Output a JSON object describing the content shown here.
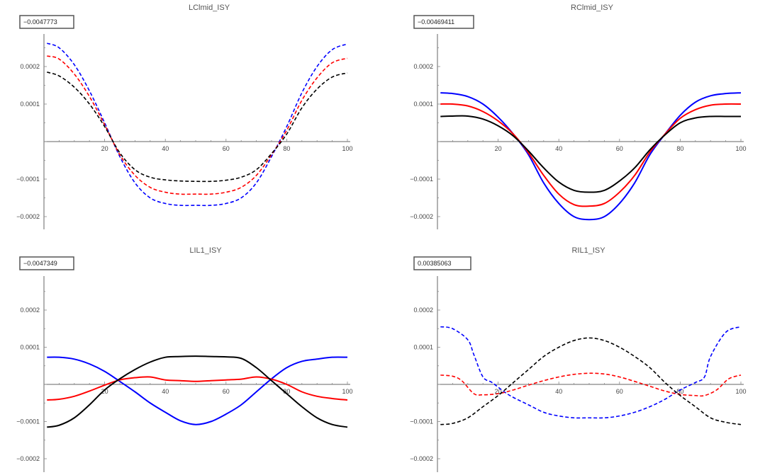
{
  "chart_data": [
    {
      "type": "line",
      "title": "LClmid_ISY",
      "offset_label": "−0.0047773",
      "xlim": [
        0,
        100
      ],
      "ylim": [
        -0.00023,
        0.00029
      ],
      "x_ticks": [
        20,
        40,
        60,
        80,
        100
      ],
      "y_ticks": [
        -0.0002,
        -0.0001,
        0.0001,
        0.0002
      ],
      "y_tick_labels": [
        "−0.0002",
        "−0.0001",
        "0.0001",
        "0.0002"
      ],
      "series": [
        {
          "color": "#0000ff",
          "dashed": true,
          "x": [
            1,
            5,
            10,
            15,
            20,
            25,
            30,
            35,
            40,
            45,
            50,
            55,
            60,
            65,
            70,
            75,
            80,
            85,
            90,
            95,
            100
          ],
          "y": [
            0.000262,
            0.00025,
            0.000205,
            0.000135,
            5e-05,
            -4e-05,
            -0.00011,
            -0.00015,
            -0.000165,
            -0.00017,
            -0.00017,
            -0.00017,
            -0.000165,
            -0.00015,
            -0.00011,
            -4e-05,
            4e-05,
            0.00013,
            0.0002,
            0.000245,
            0.00026
          ]
        },
        {
          "color": "#ff0000",
          "dashed": true,
          "x": [
            1,
            5,
            10,
            15,
            20,
            25,
            30,
            35,
            40,
            45,
            50,
            55,
            60,
            65,
            70,
            75,
            80,
            85,
            90,
            95,
            100
          ],
          "y": [
            0.000228,
            0.00022,
            0.00018,
            0.00012,
            4.5e-05,
            -3.5e-05,
            -9e-05,
            -0.000122,
            -0.000135,
            -0.00014,
            -0.00014,
            -0.00014,
            -0.000135,
            -0.000122,
            -9e-05,
            -3.5e-05,
            3e-05,
            0.00011,
            0.00017,
            0.00021,
            0.000222
          ]
        },
        {
          "color": "#000000",
          "dashed": true,
          "x": [
            1,
            5,
            10,
            15,
            20,
            25,
            30,
            35,
            40,
            45,
            50,
            55,
            60,
            65,
            70,
            75,
            80,
            85,
            90,
            95,
            100
          ],
          "y": [
            0.000185,
            0.000175,
            0.000145,
            0.0001,
            4e-05,
            -3e-05,
            -7.5e-05,
            -9.5e-05,
            -0.000102,
            -0.000105,
            -0.000106,
            -0.000106,
            -0.000103,
            -9.5e-05,
            -7.5e-05,
            -3.2e-05,
            2e-05,
            9e-05,
            0.00014,
            0.000172,
            0.000183
          ]
        }
      ]
    },
    {
      "type": "line",
      "title": "RClmid_ISY",
      "offset_label": "−0.00469411",
      "xlim": [
        0,
        100
      ],
      "ylim": [
        -0.00023,
        0.00029
      ],
      "x_ticks": [
        20,
        40,
        60,
        80,
        100
      ],
      "y_ticks": [
        -0.0002,
        -0.0001,
        0.0001,
        0.0002
      ],
      "y_tick_labels": [
        "−0.0002",
        "−0.0001",
        "0.0001",
        "0.0002"
      ],
      "series": [
        {
          "color": "#0000ff",
          "dashed": false,
          "x": [
            1,
            5,
            10,
            15,
            20,
            25,
            30,
            35,
            40,
            45,
            50,
            55,
            60,
            65,
            70,
            75,
            80,
            85,
            90,
            95,
            100
          ],
          "y": [
            0.00013,
            0.000128,
            0.00012,
            0.0001,
            6.5e-05,
            2e-05,
            -3.5e-05,
            -0.00011,
            -0.000165,
            -0.0002,
            -0.000208,
            -0.0002,
            -0.000165,
            -0.00011,
            -3.5e-05,
            2e-05,
            7e-05,
            0.000105,
            0.000122,
            0.000128,
            0.00013
          ]
        },
        {
          "color": "#ff0000",
          "dashed": false,
          "x": [
            1,
            5,
            10,
            15,
            20,
            25,
            30,
            35,
            40,
            45,
            50,
            55,
            60,
            65,
            70,
            75,
            80,
            85,
            90,
            95,
            100
          ],
          "y": [
            0.0001,
            0.0001,
            9.5e-05,
            8e-05,
            5.5e-05,
            2e-05,
            -3e-05,
            -9e-05,
            -0.00014,
            -0.000168,
            -0.000172,
            -0.000165,
            -0.000135,
            -9e-05,
            -2.8e-05,
            2e-05,
            6.2e-05,
            8.5e-05,
            9.7e-05,
            0.0001,
            0.0001
          ]
        },
        {
          "color": "#000000",
          "dashed": false,
          "x": [
            1,
            5,
            10,
            15,
            20,
            25,
            30,
            35,
            40,
            45,
            50,
            55,
            60,
            65,
            70,
            75,
            80,
            85,
            90,
            95,
            100
          ],
          "y": [
            6.7e-05,
            6.8e-05,
            6.8e-05,
            6e-05,
            4.2e-05,
            1.5e-05,
            -2.5e-05,
            -7e-05,
            -0.000108,
            -0.00013,
            -0.000135,
            -0.00013,
            -0.000105,
            -7e-05,
            -2.2e-05,
            1.8e-05,
            5e-05,
            6.3e-05,
            6.7e-05,
            6.7e-05,
            6.7e-05
          ]
        }
      ]
    },
    {
      "type": "line",
      "title": "LIL1_ISY",
      "offset_label": "−0.0047349",
      "xlim": [
        0,
        100
      ],
      "ylim": [
        -0.00023,
        0.00029
      ],
      "x_ticks": [
        20,
        40,
        60,
        80,
        100
      ],
      "y_ticks": [
        -0.0002,
        -0.0001,
        0.0001,
        0.0002
      ],
      "y_tick_labels": [
        "−0.0002",
        "−0.0001",
        "0.0001",
        "0.0002"
      ],
      "series": [
        {
          "color": "#0000ff",
          "dashed": false,
          "x": [
            1,
            5,
            10,
            15,
            20,
            25,
            30,
            35,
            40,
            45,
            50,
            55,
            60,
            65,
            70,
            75,
            80,
            85,
            90,
            95,
            100
          ],
          "y": [
            7.3e-05,
            7.3e-05,
            6.8e-05,
            5.5e-05,
            3.5e-05,
            8e-06,
            -2e-05,
            -5e-05,
            -7.5e-05,
            -9.8e-05,
            -0.000108,
            -0.0001,
            -8e-05,
            -5.5e-05,
            -2e-05,
            1.5e-05,
            4.5e-05,
            6.2e-05,
            6.8e-05,
            7.3e-05,
            7.3e-05
          ]
        },
        {
          "color": "#ff0000",
          "dashed": false,
          "x": [
            1,
            5,
            10,
            15,
            20,
            25,
            30,
            35,
            40,
            45,
            50,
            55,
            60,
            65,
            70,
            75,
            80,
            85,
            90,
            95,
            100
          ],
          "y": [
            -4.2e-05,
            -4e-05,
            -3.2e-05,
            -1.8e-05,
            -2e-06,
            1.2e-05,
            1.8e-05,
            2e-05,
            1.2e-05,
            1e-05,
            8e-06,
            1e-05,
            1.2e-05,
            1.4e-05,
            2e-05,
            1.4e-05,
            0.0,
            -2e-05,
            -3.2e-05,
            -3.8e-05,
            -4.2e-05
          ]
        },
        {
          "color": "#000000",
          "dashed": false,
          "x": [
            1,
            5,
            10,
            15,
            20,
            25,
            30,
            35,
            40,
            45,
            50,
            55,
            60,
            65,
            70,
            75,
            80,
            85,
            90,
            95,
            100
          ],
          "y": [
            -0.000115,
            -0.00011,
            -9e-05,
            -5.5e-05,
            -1.5e-05,
            1.5e-05,
            4e-05,
            6e-05,
            7.3e-05,
            7.5e-05,
            7.6e-05,
            7.5e-05,
            7.4e-05,
            7e-05,
            4.5e-05,
            1e-05,
            -2.5e-05,
            -6e-05,
            -9e-05,
            -0.000108,
            -0.000115
          ]
        }
      ]
    },
    {
      "type": "line",
      "title": "RIL1_ISY",
      "offset_label": "0.00385063",
      "xlim": [
        0,
        100
      ],
      "ylim": [
        -0.00023,
        0.00029
      ],
      "x_ticks": [
        20,
        40,
        60,
        80,
        100
      ],
      "y_ticks": [
        -0.0002,
        -0.0001,
        0.0001,
        0.0002
      ],
      "y_tick_labels": [
        "−0.0002",
        "−0.0001",
        "0.0001",
        "0.0002"
      ],
      "series": [
        {
          "color": "#0000ff",
          "dashed": true,
          "x": [
            1,
            5,
            10,
            12,
            15,
            18,
            22,
            25,
            30,
            35,
            40,
            45,
            50,
            55,
            60,
            65,
            70,
            75,
            80,
            85,
            88,
            90,
            95,
            100
          ],
          "y": [
            0.000155,
            0.00015,
            0.00012,
            8e-05,
            2e-05,
            5e-06,
            -2e-05,
            -3.5e-05,
            -5.5e-05,
            -7.5e-05,
            -8.5e-05,
            -9e-05,
            -9e-05,
            -9e-05,
            -8.5e-05,
            -7.5e-05,
            -6e-05,
            -4e-05,
            -1.5e-05,
            5e-06,
            2e-05,
            7.5e-05,
            0.00014,
            0.000155
          ]
        },
        {
          "color": "#ff0000",
          "dashed": true,
          "x": [
            1,
            5,
            8,
            12,
            15,
            20,
            25,
            30,
            35,
            40,
            45,
            50,
            55,
            60,
            65,
            70,
            75,
            80,
            85,
            88,
            92,
            96,
            100
          ],
          "y": [
            2.5e-05,
            2.2e-05,
            1e-05,
            -2.5e-05,
            -2.8e-05,
            -2.5e-05,
            -1.5e-05,
            -2e-06,
            1e-05,
            2e-05,
            2.7e-05,
            3e-05,
            2.8e-05,
            2e-05,
            8e-06,
            -5e-06,
            -1.8e-05,
            -2.7e-05,
            -3e-05,
            -3e-05,
            -1.5e-05,
            1.5e-05,
            2.5e-05
          ]
        },
        {
          "color": "#000000",
          "dashed": true,
          "x": [
            1,
            5,
            10,
            15,
            20,
            25,
            30,
            35,
            40,
            45,
            50,
            55,
            60,
            65,
            70,
            75,
            80,
            85,
            90,
            95,
            100
          ],
          "y": [
            -0.000108,
            -0.000105,
            -9e-05,
            -6e-05,
            -3e-05,
            5e-06,
            4e-05,
            7.5e-05,
            0.0001,
            0.000118,
            0.000125,
            0.000118,
            0.0001,
            7.5e-05,
            4.5e-05,
            5e-06,
            -3e-05,
            -6e-05,
            -9e-05,
            -0.000102,
            -0.000108
          ]
        }
      ]
    }
  ]
}
